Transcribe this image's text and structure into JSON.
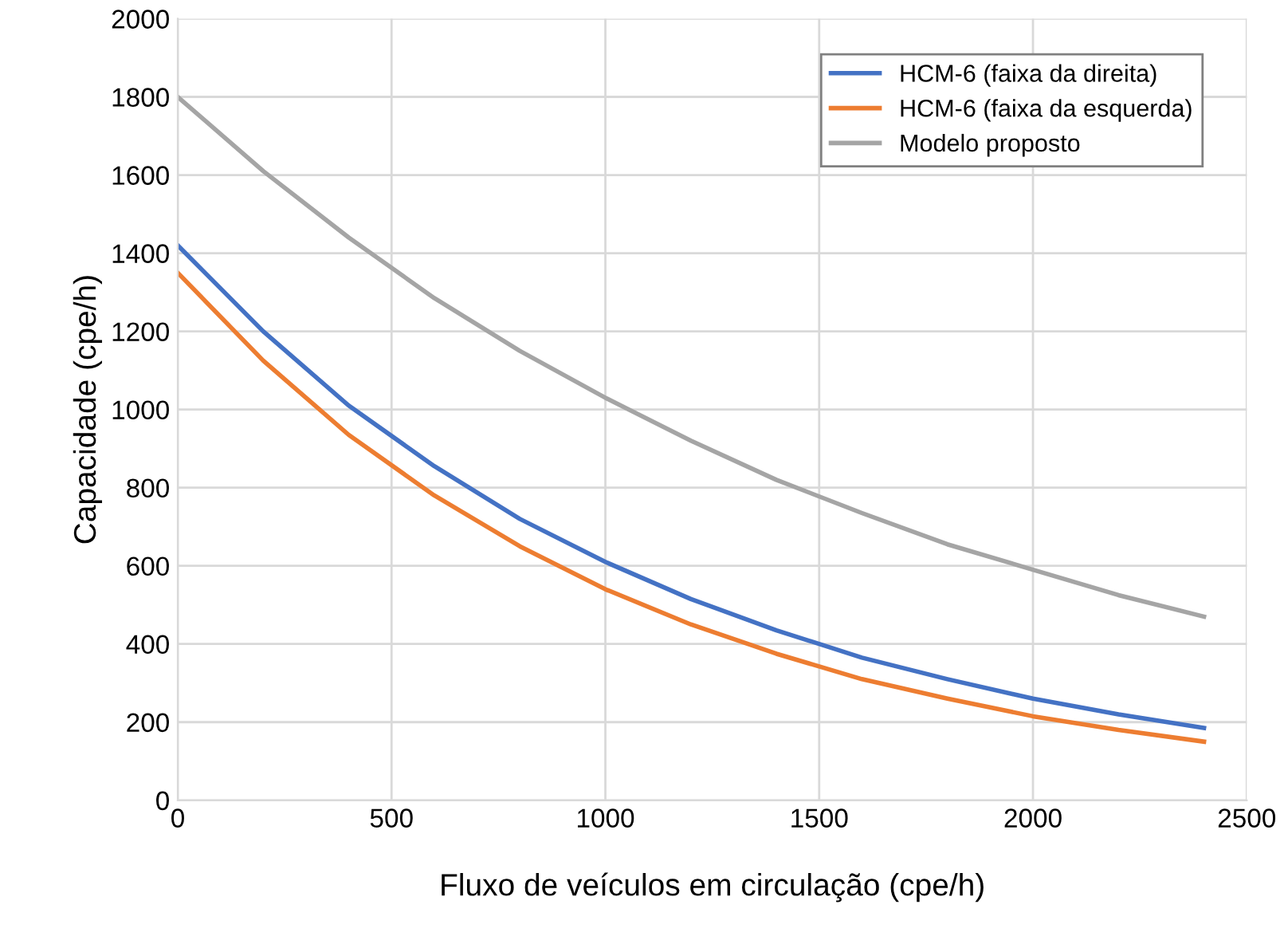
{
  "chart_data": {
    "type": "line",
    "xlabel": "Fluxo de veículos em circulação (cpe/h)",
    "ylabel": "Capacidade (cpe/h)",
    "x": [
      0,
      200,
      400,
      600,
      800,
      1000,
      1200,
      1400,
      1600,
      1800,
      2000,
      2200,
      2400
    ],
    "series": [
      {
        "name": "HCM-6 (faixa da direita)",
        "color": "#4472c4",
        "values": [
          1420,
          1200,
          1010,
          855,
          720,
          610,
          515,
          435,
          365,
          310,
          260,
          220,
          185
        ]
      },
      {
        "name": "HCM-6 (faixa da esquerda)",
        "color": "#ed7d31",
        "values": [
          1350,
          1125,
          935,
          780,
          650,
          540,
          450,
          375,
          310,
          260,
          215,
          180,
          150
        ]
      },
      {
        "name": "Modelo proposto",
        "color": "#a5a5a5",
        "values": [
          1800,
          1610,
          1440,
          1285,
          1150,
          1030,
          920,
          820,
          735,
          655,
          590,
          525,
          470
        ]
      }
    ],
    "xlim": [
      0,
      2500
    ],
    "xticks": [
      0,
      500,
      1000,
      1500,
      2000,
      2500
    ],
    "ylim": [
      0,
      2000
    ],
    "yticks": [
      0,
      200,
      400,
      600,
      800,
      1000,
      1200,
      1400,
      1600,
      1800,
      2000
    ],
    "grid": true,
    "legend": "top right",
    "marker": "none",
    "line_style": "solid"
  }
}
